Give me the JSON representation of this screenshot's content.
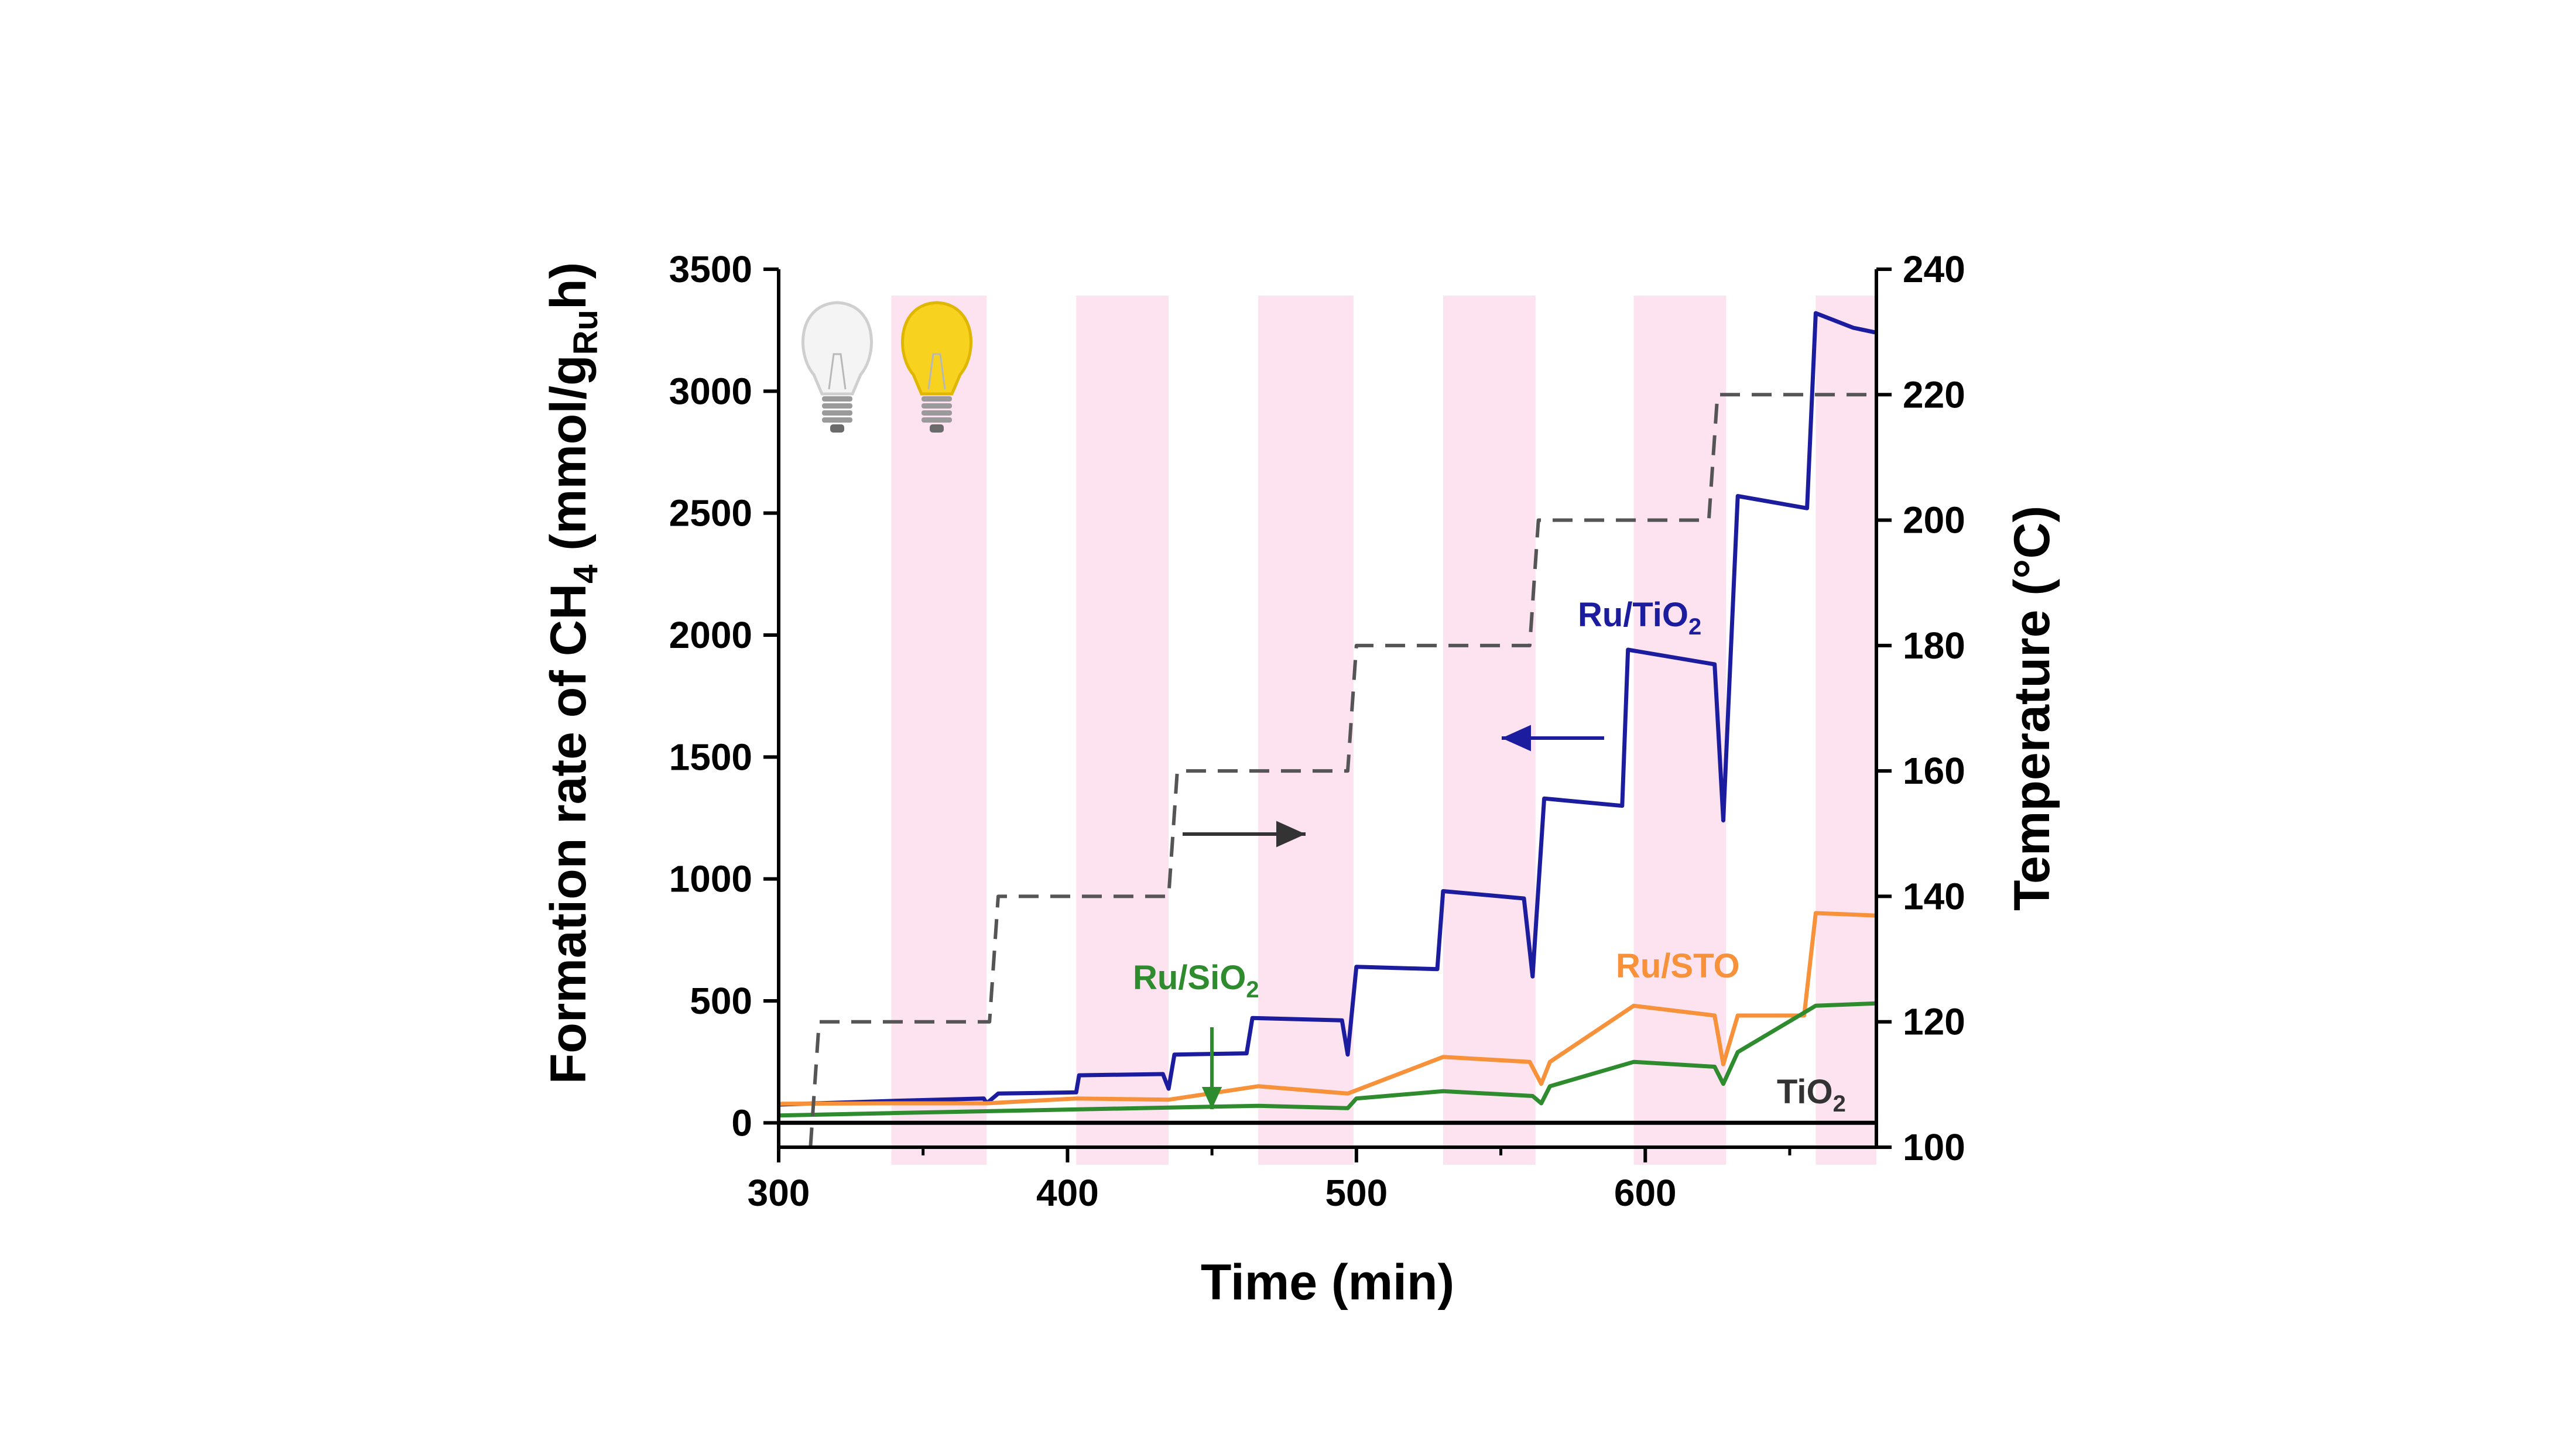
{
  "chart_data": {
    "type": "line",
    "xlabel": "Time (min)",
    "ylabel": {
      "main": "Formation rate of CH",
      "sub1": "4",
      "mid": " (mmol/g",
      "sub2": "Ru",
      "end": "h)"
    },
    "y2label": "Temperature (°C)",
    "xlim": [
      300,
      680
    ],
    "ylim": [
      -100,
      3500
    ],
    "y2lim": [
      100,
      240
    ],
    "xticks": [
      300,
      400,
      500,
      600
    ],
    "yticks": [
      0,
      500,
      1000,
      1500,
      2000,
      2500,
      3000,
      3500
    ],
    "y2ticks": [
      100,
      120,
      140,
      160,
      180,
      200,
      220,
      240
    ],
    "light_on_intervals": [
      [
        339,
        372
      ],
      [
        403,
        435
      ],
      [
        466,
        499
      ],
      [
        530,
        562
      ],
      [
        596,
        628
      ],
      [
        659,
        680
      ]
    ],
    "icons": [
      "light-off-bulb",
      "light-on-bulb"
    ],
    "colors": {
      "Ru/TiO2": "#1c1c9e",
      "Ru/STO": "#f7913a",
      "Ru/SiO2": "#2e8b2e",
      "TiO2": "#000000",
      "temperature": "#555555",
      "light_band": "#fde3f0"
    },
    "series": [
      {
        "name": "Ru/TiO2",
        "label_main": "Ru/TiO",
        "label_sub": "2",
        "axis": "left",
        "points": [
          [
            300,
            75
          ],
          [
            340,
            90
          ],
          [
            371,
            100
          ],
          [
            372,
            80
          ],
          [
            376,
            120
          ],
          [
            403,
            125
          ],
          [
            404,
            195
          ],
          [
            433,
            200
          ],
          [
            435,
            140
          ],
          [
            437,
            280
          ],
          [
            462,
            285
          ],
          [
            464,
            430
          ],
          [
            495,
            420
          ],
          [
            497,
            280
          ],
          [
            500,
            640
          ],
          [
            528,
            630
          ],
          [
            530,
            950
          ],
          [
            558,
            920
          ],
          [
            561,
            600
          ],
          [
            565,
            1330
          ],
          [
            592,
            1300
          ],
          [
            594,
            1940
          ],
          [
            624,
            1880
          ],
          [
            627,
            1240
          ],
          [
            632,
            2570
          ],
          [
            656,
            2520
          ],
          [
            659,
            3320
          ],
          [
            672,
            3260
          ],
          [
            680,
            3240
          ]
        ]
      },
      {
        "name": "Ru/STO",
        "label_main": "Ru/STO",
        "label_sub": "",
        "axis": "left",
        "points": [
          [
            300,
            78
          ],
          [
            339,
            80
          ],
          [
            372,
            80
          ],
          [
            403,
            100
          ],
          [
            435,
            95
          ],
          [
            466,
            150
          ],
          [
            497,
            120
          ],
          [
            530,
            270
          ],
          [
            560,
            250
          ],
          [
            564,
            160
          ],
          [
            567,
            250
          ],
          [
            596,
            480
          ],
          [
            624,
            440
          ],
          [
            627,
            240
          ],
          [
            632,
            440
          ],
          [
            655,
            440
          ],
          [
            659,
            860
          ],
          [
            680,
            850
          ]
        ]
      },
      {
        "name": "Ru/SiO2",
        "label_main": "Ru/SiO",
        "label_sub": "2",
        "axis": "left",
        "points": [
          [
            300,
            30
          ],
          [
            339,
            40
          ],
          [
            403,
            55
          ],
          [
            466,
            70
          ],
          [
            497,
            60
          ],
          [
            500,
            100
          ],
          [
            530,
            130
          ],
          [
            561,
            110
          ],
          [
            564,
            80
          ],
          [
            567,
            150
          ],
          [
            596,
            250
          ],
          [
            624,
            230
          ],
          [
            627,
            160
          ],
          [
            632,
            290
          ],
          [
            659,
            480
          ],
          [
            680,
            490
          ]
        ]
      },
      {
        "name": "TiO2",
        "label_main": "TiO",
        "label_sub": "2",
        "axis": "left",
        "points": [
          [
            300,
            0
          ],
          [
            680,
            0
          ]
        ]
      },
      {
        "name": "Temperature",
        "axis": "right",
        "dashed": true,
        "points": [
          [
            300,
            100
          ],
          [
            311,
            100
          ],
          [
            314,
            120
          ],
          [
            373,
            120
          ],
          [
            376,
            140
          ],
          [
            435,
            140
          ],
          [
            438,
            160
          ],
          [
            497,
            160
          ],
          [
            500,
            180
          ],
          [
            560,
            180
          ],
          [
            563,
            200
          ],
          [
            622,
            200
          ],
          [
            625,
            220
          ],
          [
            680,
            220
          ]
        ]
      }
    ]
  }
}
